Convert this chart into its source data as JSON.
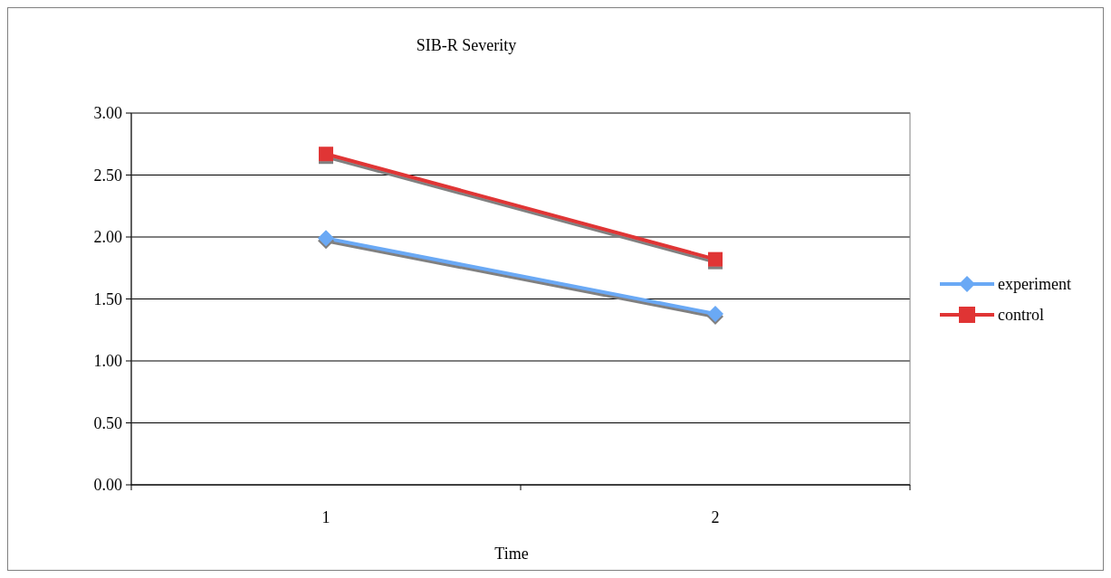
{
  "chart_data": {
    "type": "line",
    "title": "SIB-R Severity",
    "xlabel": "Time",
    "categories": [
      "1",
      "2"
    ],
    "series": [
      {
        "name": "experiment",
        "color": "#6aa9f5",
        "values": [
          1.99,
          1.38
        ],
        "marker": "diamond"
      },
      {
        "name": "control",
        "color": "#e03434",
        "values": [
          2.67,
          1.82
        ],
        "marker": "square"
      }
    ],
    "ylim": [
      0,
      3
    ],
    "yticks": [
      {
        "value": 0,
        "label": "0.00"
      },
      {
        "value": 0.5,
        "label": "0.50"
      },
      {
        "value": 1,
        "label": "1.00"
      },
      {
        "value": 1.5,
        "label": "1.50"
      },
      {
        "value": 2,
        "label": "2.00"
      },
      {
        "value": 2.5,
        "label": "2.50"
      },
      {
        "value": 3,
        "label": "3.00"
      }
    ],
    "grid": "y",
    "legend": "right"
  }
}
